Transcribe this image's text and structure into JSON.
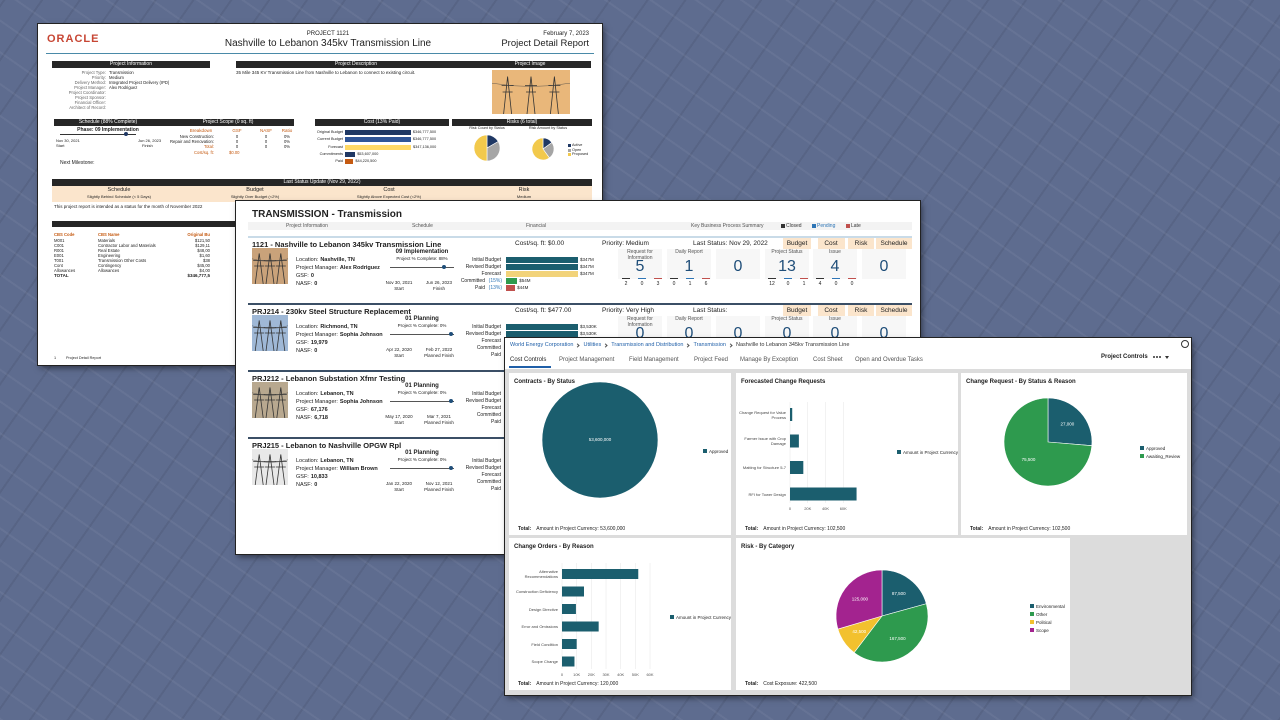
{
  "report": {
    "logo": "ORACLE",
    "project_no": "PROJECT 1121",
    "title": "Nashville to Lebanon 345kv Transmission Line",
    "date": "February 7, 2023",
    "report_name": "Project Detail Report",
    "info": {
      "heading": "Project Information",
      "labels": [
        "Project Type:",
        "Priority:",
        "Delivery Method:",
        "Project Manager:",
        "Project Coordinator:",
        "Project Sponsor:",
        "Financial Officer:",
        "Architect of Record:"
      ],
      "values": [
        "Transmission",
        "Medium",
        "Integrated Project Delivery (IPD)",
        "Alex Rodriguez"
      ]
    },
    "description": {
      "heading": "Project Description",
      "text": "35 Mile 345 KV Transmission Line from Nashville to Lebanon to connect to existing circuit."
    },
    "image_heading": "Project Image",
    "schedule": {
      "heading": "Schedule (88% Complete)",
      "phase": "Phase: 09 Implementation",
      "start_date": "Nov 30, 2021",
      "start": "Start",
      "finish_date": "Jun 26, 2023",
      "finish": "Finish"
    },
    "scope": {
      "heading": "Project Scope (0 sq. ft)",
      "columns": [
        "Breakdown",
        "GSF",
        "NASF",
        "Ratio"
      ],
      "rows": [
        [
          "New Construction:",
          "0",
          "0",
          "0%"
        ],
        [
          "Repair and Renovation:",
          "0",
          "0",
          "0%"
        ],
        [
          "Total:",
          "0",
          "0",
          "0%"
        ]
      ],
      "cost_label": "Cost/sq. ft:",
      "cost_value": "$0.00"
    },
    "cost": {
      "heading": "Cost (13% Paid)",
      "categories": [
        "Original Budget",
        "Current Budget",
        "Forecast",
        "Commitments",
        "Paid"
      ],
      "values": [
        346777500,
        346777500,
        347136000,
        53607000,
        44220500
      ],
      "value_labels": [
        "$346,777,500",
        "$346,777,500",
        "$347,136,000",
        "$53,607,000",
        "$44,220,500"
      ],
      "colors": [
        "#1f3864",
        "#2f5597",
        "#ffd966",
        "#203864",
        "#c55a11"
      ]
    },
    "risks": {
      "heading": "Risks (6 total)",
      "count_title": "Risk Count by Status",
      "amount_title": "Risk Amount by Status",
      "legend": [
        "Active",
        "Open",
        "Proposed"
      ],
      "colors": [
        "#1f3864",
        "#a5a5a5",
        "#f2c94c"
      ],
      "count_values": [
        1,
        2,
        3
      ],
      "amount_values": [
        150000,
        250000,
        600000
      ]
    },
    "milestone": "Next Milestone:",
    "status": {
      "heading": "Last Status Update (Nov 29, 2022)",
      "columns": [
        {
          "title": "Schedule",
          "text": "Slightly Behind Schedule (< 5 Days)"
        },
        {
          "title": "Budget",
          "text": "Slightly Over Budget (<2%)"
        },
        {
          "title": "Cost",
          "text": "Slightly Above Expected Cost (<2%)"
        },
        {
          "title": "Risk",
          "text": "Medium"
        }
      ]
    },
    "note": "This project report is intended as a status for the month of November 2022",
    "cbs": {
      "columns": [
        "CBS Code",
        "CBS Name",
        "Original Bu"
      ],
      "rows": [
        [
          "M001",
          "Materials",
          "$121,50"
        ],
        [
          "C001",
          "Contractor Labor and Materials",
          "$129,11"
        ],
        [
          "R001",
          "Real Estate",
          "$48,00"
        ],
        [
          "E001",
          "Engineering",
          "$1,60"
        ],
        [
          "T001",
          "Transmission Other Costs",
          "$38"
        ],
        [
          "Cont",
          "Contingency",
          "$45,00"
        ],
        [
          "Allowances",
          "Allowances",
          "$4,00"
        ]
      ],
      "total_label": "TOTAL",
      "total_value": "$346,777,5"
    },
    "footer_page": "1",
    "footer": "Project Detail Report"
  },
  "transmission": {
    "title": "TRANSMISSION - Transmission",
    "columns": [
      "Project Information",
      "Schedule",
      "Financial",
      "Key Business Process Summary"
    ],
    "legend": [
      "Closed",
      "Pending",
      "Late"
    ],
    "tabs": [
      "Budget",
      "Cost",
      "Risk",
      "Schedule"
    ],
    "labels": {
      "location": "Location:",
      "manager": "Project Manager:",
      "gsf": "GSF:",
      "nasf": "NASF:",
      "start": "Start",
      "finish": "Finish",
      "planned_finish": "Planned Finish"
    },
    "fin_labels": [
      "Initial Budget",
      "Revised Budget",
      "Forecast",
      "Committed",
      "Paid"
    ],
    "kbp_labels": [
      "Request for Information",
      "Daily Report",
      "Project Status",
      "Issue"
    ],
    "projects": [
      {
        "name": "1121 - Nashville to Lebanon 345kv Transmission Line",
        "cost": "Cost/sq. ft: $0.00",
        "priority": "Priority: Medium",
        "last_status": "Last Status: Nov 29, 2022",
        "location": "Nashville, TN",
        "manager": "Alex Rodriguez",
        "gsf": "0",
        "nasf": "0",
        "phase": "09 Implementation",
        "complete": "Project % Complete: 88%",
        "start": "Nov 30, 2021",
        "finish": "Jun 26, 2023",
        "committed_pct": "(15%)",
        "paid_pct": "(13%)",
        "fin_values": [
          347,
          347,
          347,
          54,
          44
        ],
        "fin_value_labels": [
          "$347M",
          "$347M",
          "$347M",
          "$54M",
          "$44M"
        ],
        "kbp_values": [
          5,
          1,
          0,
          13,
          4,
          0
        ],
        "kbp_subs": [
          2,
          0,
          3,
          0,
          1,
          6,
          12,
          0,
          1,
          4,
          0,
          0
        ]
      },
      {
        "name": "PRJ214 - 230kv Steel Structure Replacement",
        "cost": "Cost/sq. ft: $477.00",
        "priority": "Priority: Very High",
        "last_status": "Last Status:",
        "location": "Richmond, TN",
        "manager": "Sophia Johnson",
        "gsf": "19,979",
        "nasf": "0",
        "phase": "01 Planning",
        "complete": "Project % Complete: 0%",
        "start": "Apr 22, 2020",
        "finish": "Feb 27, 2022",
        "fin_values": [
          3530,
          3530
        ],
        "fin_value_labels": [
          "$3,530K",
          "$3,530K"
        ],
        "kbp_values": [
          0,
          0,
          0,
          0,
          0,
          0
        ]
      },
      {
        "name": "PRJ212 - Lebanon Substation Xfmr Testing",
        "location": "Lebanon, TN",
        "manager": "Sophia Johnson",
        "gsf": "67,176",
        "nasf": "6,718",
        "phase": "01 Planning",
        "complete": "Project % Complete: 0%",
        "start": "May 17, 2020",
        "finish": "Mar 7, 2021"
      },
      {
        "name": "PRJ215 - Lebanon to Nashville OPGW Rpl",
        "location": "Lebanon, TN",
        "manager": "William Brown",
        "gsf": "10,833",
        "nasf": "0",
        "phase": "01 Planning",
        "complete": "Project % Complete: 0%",
        "start": "Jan 22, 2020",
        "finish": "Nov 12, 2021"
      }
    ]
  },
  "dashboard": {
    "breadcrumb": [
      "World Energy Corporation",
      "Utilities",
      "Transmission and Distribution",
      "Transmission",
      "Nashville to Lebanon 345kv Transmission Line"
    ],
    "tabs": [
      "Cost Controls",
      "Project Management",
      "Field Management",
      "Project Feed",
      "Manage By Exception",
      "Cost Sheet",
      "Open and Overdue Tasks"
    ],
    "menu": "Project Controls",
    "panels": [
      {
        "type": "pie",
        "title": "Contracts - By Status",
        "categories": [
          "Approved"
        ],
        "values": [
          53600000
        ],
        "value_labels": [
          "53,600,000"
        ],
        "colors": [
          "#1b5e6e"
        ],
        "footer_label": "Total:",
        "footer": "Amount in Project Currency: 53,600,000"
      },
      {
        "type": "hbar",
        "title": "Forecasted Change Requests",
        "categories": [
          "Change Request for Value Process",
          "Farmer Issue with Crop Damage",
          "Matting for Structure 5-7",
          "RFI for Tower Design"
        ],
        "values": [
          2500,
          10000,
          15000,
          75000
        ],
        "color": "#1b5e6e",
        "series_name": "Amount in Project Currency",
        "xlim": [
          0,
          80000
        ],
        "xticks": [
          0,
          {
            "value": 20000,
            "label": "20K"
          },
          {
            "value": 40000,
            "label": "40K"
          },
          {
            "value": 60000,
            "label": "60K"
          }
        ],
        "footer_label": "Total:",
        "footer": "Amount in Project Currency: 102,500"
      },
      {
        "type": "pie",
        "title": "Change Request - By Status & Reason",
        "categories": [
          "Approved",
          "Awaiting_Review"
        ],
        "values": [
          27000,
          75500
        ],
        "value_labels": [
          "27,000",
          "75,500"
        ],
        "colors": [
          "#1b5e6e",
          "#2e9a4e"
        ],
        "footer_label": "Total:",
        "footer": "Amount in Project Currency: 102,500"
      },
      {
        "type": "hbar",
        "title": "Change Orders - By Reason",
        "categories": [
          "Alternative Recommendations",
          "Construction Deficiency",
          "Design Directive",
          "Error and Omissions",
          "Field Condition",
          "Scope Change"
        ],
        "values": [
          52000,
          15000,
          9500,
          25000,
          10000,
          8500
        ],
        "color": "#1b5e6e",
        "series_name": "Amount in Project Currency",
        "xlim": [
          0,
          60000
        ],
        "xticks": [
          0,
          {
            "value": 10000,
            "label": "10K"
          },
          {
            "value": 20000,
            "label": "20K"
          },
          {
            "value": 30000,
            "label": "30K"
          },
          {
            "value": 40000,
            "label": "40K"
          },
          {
            "value": 50000,
            "label": "50K"
          },
          {
            "value": 60000,
            "label": "60K"
          }
        ],
        "footer_label": "Total:",
        "footer": "Amount in Project Currency: 120,000"
      },
      {
        "type": "pie",
        "title": "Risk - By Category",
        "categories": [
          "Environmental",
          "Other",
          "Political",
          "Scope"
        ],
        "values": [
          87500,
          167500,
          42500,
          125000
        ],
        "value_labels": [
          "87,500",
          "167,500",
          "42,500",
          "125,000"
        ],
        "colors": [
          "#1b5e6e",
          "#2e9a4e",
          "#f2c12e",
          "#a3238f"
        ],
        "footer_label": "Total:",
        "footer": "Cost Exposure: 422,500"
      }
    ]
  }
}
